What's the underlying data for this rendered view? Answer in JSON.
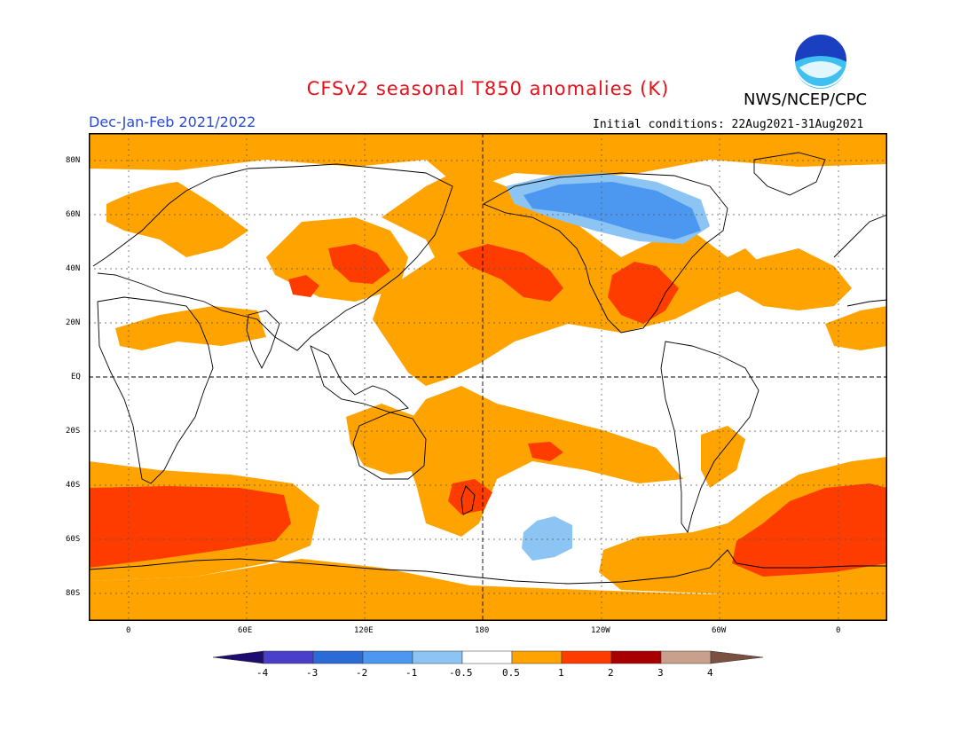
{
  "title": "CFSv2 seasonal T850 anomalies (K)",
  "org": "NWS/NCEP/CPC",
  "season": "Dec-Jan-Feb 2021/2022",
  "initial_conditions": "Initial conditions: 22Aug2021-31Aug2021",
  "logo_text": "NOAA",
  "lat_labels": [
    "80N",
    "60N",
    "40N",
    "20N",
    "EQ",
    "20S",
    "40S",
    "60S",
    "80S"
  ],
  "lon_labels": [
    "0",
    "60E",
    "120E",
    "180",
    "120W",
    "60W",
    "0"
  ],
  "colorbar": {
    "labels": [
      "-4",
      "-3",
      "-2",
      "-1",
      "-0.5",
      "0.5",
      "1",
      "2",
      "3",
      "4"
    ],
    "colors": [
      "#1e0c6e",
      "#4a3fc8",
      "#2a6bd6",
      "#4c98f0",
      "#8cc4f4",
      "#ffffff",
      "#ffa300",
      "#ff3c00",
      "#a80000",
      "#c8a08c",
      "#7a5040"
    ]
  },
  "colors": {
    "warm": "#ffa300",
    "hot": "#ff3c00",
    "cool": "#8cc4f4",
    "cold": "#4c98f0"
  }
}
